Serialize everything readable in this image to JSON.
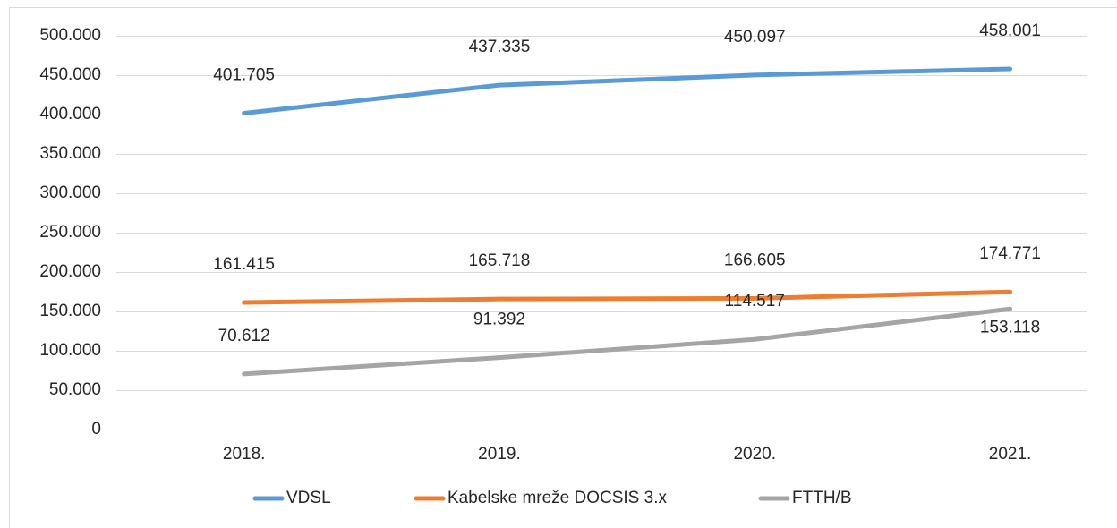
{
  "chart_data": {
    "type": "line",
    "categories": [
      "2018.",
      "2019.",
      "2020.",
      "2021."
    ],
    "series": [
      {
        "name": "VDSL",
        "color": "#5b9bd5",
        "values": [
          401705,
          437335,
          450097,
          458001
        ],
        "value_labels": [
          "401.705",
          "437.335",
          "450.097",
          "458.001"
        ]
      },
      {
        "name": "Kabelske mreže DOCSIS 3.x",
        "color": "#ed7d31",
        "values": [
          161415,
          165718,
          166605,
          174771
        ],
        "value_labels": [
          "161.415",
          "165.718",
          "166.605",
          "174.771"
        ]
      },
      {
        "name": "FTTH/B",
        "color": "#a5a5a5",
        "values": [
          70612,
          91392,
          114517,
          153118
        ],
        "value_labels": [
          "70.612",
          "91.392",
          "114.517",
          "153.118"
        ]
      }
    ],
    "ylim": [
      0,
      500000
    ],
    "yticks": [
      0,
      {
        "value": 50000,
        "label": "50.000"
      },
      {
        "value": 100000,
        "label": "100.000"
      },
      {
        "value": 150000,
        "label": "150.000"
      },
      {
        "value": 200000,
        "label": "200.000"
      },
      {
        "value": 250000,
        "label": "250.000"
      },
      {
        "value": 300000,
        "label": "300.000"
      },
      {
        "value": 350000,
        "label": "350.000"
      },
      {
        "value": 400000,
        "label": "400.000"
      },
      {
        "value": 450000,
        "label": "450.000"
      },
      {
        "value": 500000,
        "label": "500.000"
      }
    ],
    "grid": true,
    "legend": "bottom"
  }
}
